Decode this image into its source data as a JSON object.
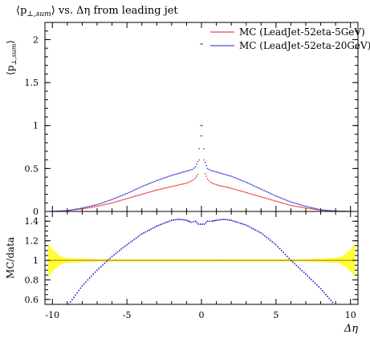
{
  "chart_data": [
    {
      "type": "scatter",
      "title": "⟨p⊥,sum⟩ vs. Δη from leading jet",
      "title_parts": {
        "main": "⟨p",
        "sub": "⊥,sum",
        "rest": "⟩ vs. Δη from leading jet"
      },
      "ylabel_parts": {
        "main": "⟨p",
        "sub": "⊥,sum",
        "rest": "⟩"
      },
      "xlim": [
        -10.5,
        10.5
      ],
      "ylim": [
        0,
        2.2
      ],
      "yticks": [
        0,
        0.5,
        1,
        1.5,
        2
      ],
      "ytick_labels": [
        "0",
        "0.5",
        "1",
        "1.5",
        "2"
      ],
      "legend_position": "top-right",
      "series": [
        {
          "name": "MC (LeadJet-52eta-5GeV)",
          "color": "#e31a1c",
          "x": [
            -10.1,
            -9,
            -8,
            -7,
            -6,
            -5,
            -4,
            -3,
            -2,
            -1,
            -0.6,
            -0.4,
            -0.25,
            -0.15,
            -0.05,
            0.05,
            0.15,
            0.25,
            0.4,
            0.6,
            1,
            2,
            3,
            4,
            5,
            6,
            7,
            8,
            9,
            10.1
          ],
          "y": [
            0.0,
            0.01,
            0.03,
            0.06,
            0.1,
            0.15,
            0.2,
            0.25,
            0.29,
            0.33,
            0.36,
            0.39,
            0.43,
            0.6,
            0.88,
            0.88,
            0.6,
            0.44,
            0.38,
            0.34,
            0.31,
            0.27,
            0.22,
            0.17,
            0.12,
            0.07,
            0.04,
            0.015,
            0.005,
            0.0
          ]
        },
        {
          "name": "MC (LeadJet-52eta-20GeV)",
          "color": "#1c1cd0",
          "x": [
            -10.1,
            -9,
            -8,
            -7,
            -6,
            -5,
            -4,
            -3,
            -2,
            -1,
            -0.6,
            -0.4,
            -0.25,
            -0.15,
            -0.05,
            0.05,
            0.15,
            0.25,
            0.4,
            0.6,
            1,
            2,
            3,
            4,
            5,
            6,
            7,
            8,
            9,
            10.1
          ],
          "y": [
            0.0,
            0.01,
            0.04,
            0.08,
            0.14,
            0.21,
            0.29,
            0.36,
            0.42,
            0.47,
            0.49,
            0.52,
            0.58,
            0.73,
            1.0,
            1.0,
            0.73,
            0.57,
            0.5,
            0.48,
            0.46,
            0.41,
            0.34,
            0.26,
            0.18,
            0.11,
            0.06,
            0.02,
            0.005,
            0.0
          ]
        },
        {
          "name": "",
          "color": "#1c1cd0",
          "x": [
            -0.05,
            0.05
          ],
          "y": [
            1.95,
            1.95
          ]
        }
      ]
    },
    {
      "type": "scatter",
      "ylabel": "MC/data",
      "xlabel": "Δη",
      "xlim": [
        -10.5,
        10.5
      ],
      "ylim": [
        0.55,
        1.5
      ],
      "yticks": [
        0.6,
        0.8,
        1,
        1.2,
        1.4
      ],
      "ytick_labels": [
        "0.6",
        "0.8",
        "1",
        "1.2",
        "1.4"
      ],
      "xticks": [
        -10,
        -5,
        0,
        5,
        10
      ],
      "xtick_labels": [
        "-10",
        "-5",
        "0",
        "5",
        "10"
      ],
      "reference_line": 1.0,
      "band_color": "#ffff33",
      "line_color": "#a0a030",
      "series": [
        {
          "name": "",
          "color": "#e31a1c",
          "x": [
            -10,
            -5,
            0,
            5,
            10
          ],
          "y": [
            1.0,
            1.0,
            1.0,
            1.0,
            1.0
          ]
        },
        {
          "name": "",
          "color": "#1c1cd0",
          "x": [
            -8.9,
            -8,
            -7,
            -6,
            -5,
            -4,
            -3,
            -2,
            -1.5,
            -1,
            -0.7,
            -0.4,
            -0.2,
            0.2,
            0.4,
            0.7,
            1,
            1.5,
            2,
            3,
            4,
            5,
            6,
            7,
            8,
            8.8
          ],
          "y": [
            0.55,
            0.74,
            0.9,
            1.04,
            1.16,
            1.27,
            1.35,
            1.41,
            1.42,
            1.41,
            1.39,
            1.4,
            1.37,
            1.37,
            1.4,
            1.4,
            1.41,
            1.42,
            1.41,
            1.36,
            1.28,
            1.16,
            1.0,
            0.86,
            0.71,
            0.57
          ]
        }
      ]
    }
  ]
}
